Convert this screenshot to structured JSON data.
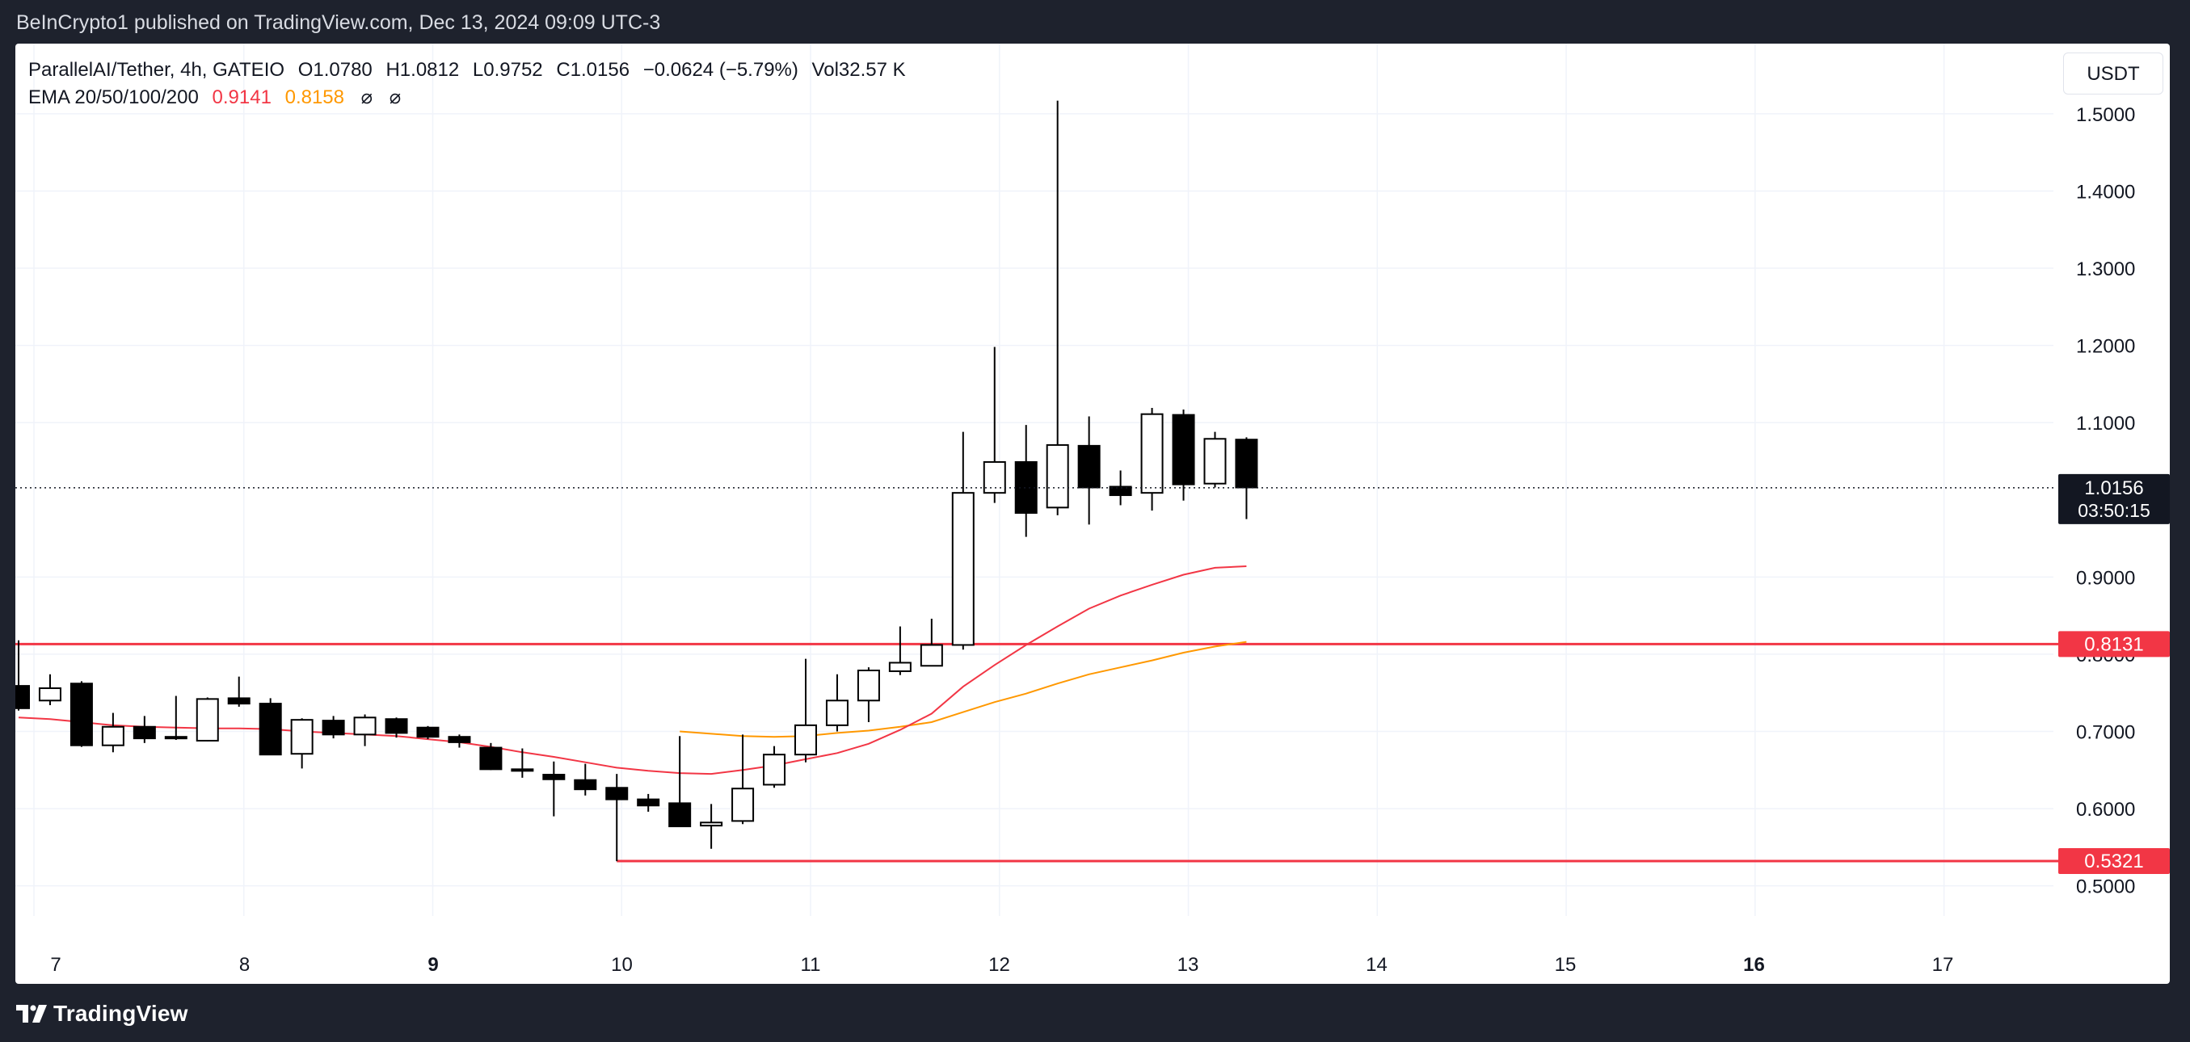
{
  "header": {
    "published_text": "BeInCrypto1 published on TradingView.com, Dec 13, 2024 09:09 UTC-3"
  },
  "legend": {
    "symbol": "ParallelAI/Tether, 4h, GATEIO",
    "open_label": "O",
    "open": "1.0780",
    "high_label": "H",
    "high": "1.0812",
    "low_label": "L",
    "low": "0.9752",
    "close_label": "C",
    "close": "1.0156",
    "change": "−0.0624 (−5.79%)",
    "volume_label": "Vol",
    "volume": "32.57 K",
    "ema_label": "EMA 20/50/100/200",
    "ema20": "0.9141",
    "ema50": "0.8158",
    "ema100": "⌀",
    "ema200": "⌀"
  },
  "toolbar": {
    "currency": "USDT"
  },
  "footer": {
    "brand": "TradingView"
  },
  "colors": {
    "ema20": "#f23645",
    "ema50": "#ff9800",
    "level_line": "#f23645",
    "price_tag": "#131722",
    "candle_up_fill": "#ffffff",
    "candle_down_fill": "#000000",
    "grid": "#f0f3fa",
    "axis_text": "#131722"
  },
  "chart_data": {
    "type": "candlestick",
    "title": "ParallelAI/Tether, 4h, GATEIO",
    "ylim": [
      0.44,
      1.57
    ],
    "y_ticks": [
      "1.5000",
      "1.4000",
      "1.3000",
      "1.2000",
      "1.1000",
      "0.9000",
      "0.8000",
      "0.7000",
      "0.6000",
      "0.5000"
    ],
    "y_tick_values": [
      1.5,
      1.4,
      1.3,
      1.2,
      1.1,
      0.9,
      0.8,
      0.7,
      0.6,
      0.5
    ],
    "x_ticks": [
      "7",
      "8",
      "9",
      "10",
      "11",
      "12",
      "13",
      "14",
      "15",
      "16",
      "17"
    ],
    "x_tick_bold": [
      "9",
      "16"
    ],
    "bar_interval_hours": 4,
    "candles": [
      {
        "o": 0.759,
        "h": 0.818,
        "l": 0.727,
        "c": 0.73
      },
      {
        "o": 0.74,
        "h": 0.774,
        "l": 0.734,
        "c": 0.756
      },
      {
        "o": 0.762,
        "h": 0.765,
        "l": 0.68,
        "c": 0.682
      },
      {
        "o": 0.682,
        "h": 0.724,
        "l": 0.673,
        "c": 0.706
      },
      {
        "o": 0.706,
        "h": 0.72,
        "l": 0.685,
        "c": 0.691
      },
      {
        "o": 0.693,
        "h": 0.746,
        "l": 0.689,
        "c": 0.693
      },
      {
        "o": 0.688,
        "h": 0.744,
        "l": 0.687,
        "c": 0.742
      },
      {
        "o": 0.743,
        "h": 0.771,
        "l": 0.732,
        "c": 0.736
      },
      {
        "o": 0.736,
        "h": 0.743,
        "l": 0.67,
        "c": 0.67
      },
      {
        "o": 0.671,
        "h": 0.717,
        "l": 0.652,
        "c": 0.715
      },
      {
        "o": 0.714,
        "h": 0.72,
        "l": 0.691,
        "c": 0.696
      },
      {
        "o": 0.696,
        "h": 0.722,
        "l": 0.681,
        "c": 0.718
      },
      {
        "o": 0.716,
        "h": 0.718,
        "l": 0.692,
        "c": 0.698
      },
      {
        "o": 0.705,
        "h": 0.707,
        "l": 0.69,
        "c": 0.693
      },
      {
        "o": 0.693,
        "h": 0.696,
        "l": 0.679,
        "c": 0.686
      },
      {
        "o": 0.679,
        "h": 0.685,
        "l": 0.65,
        "c": 0.651
      },
      {
        "o": 0.651,
        "h": 0.678,
        "l": 0.64,
        "c": 0.65
      },
      {
        "o": 0.644,
        "h": 0.661,
        "l": 0.59,
        "c": 0.638
      },
      {
        "o": 0.637,
        "h": 0.658,
        "l": 0.617,
        "c": 0.625
      },
      {
        "o": 0.627,
        "h": 0.645,
        "l": 0.532,
        "c": 0.612
      },
      {
        "o": 0.612,
        "h": 0.619,
        "l": 0.596,
        "c": 0.604
      },
      {
        "o": 0.607,
        "h": 0.694,
        "l": 0.577,
        "c": 0.577
      },
      {
        "o": 0.578,
        "h": 0.606,
        "l": 0.548,
        "c": 0.582
      },
      {
        "o": 0.584,
        "h": 0.696,
        "l": 0.58,
        "c": 0.626
      },
      {
        "o": 0.631,
        "h": 0.681,
        "l": 0.627,
        "c": 0.67
      },
      {
        "o": 0.67,
        "h": 0.794,
        "l": 0.66,
        "c": 0.708
      },
      {
        "o": 0.708,
        "h": 0.774,
        "l": 0.7,
        "c": 0.74
      },
      {
        "o": 0.74,
        "h": 0.783,
        "l": 0.712,
        "c": 0.779
      },
      {
        "o": 0.778,
        "h": 0.836,
        "l": 0.773,
        "c": 0.789
      },
      {
        "o": 0.785,
        "h": 0.846,
        "l": 0.785,
        "c": 0.812
      },
      {
        "o": 0.812,
        "h": 1.088,
        "l": 0.806,
        "c": 1.009
      },
      {
        "o": 1.009,
        "h": 1.198,
        "l": 0.996,
        "c": 1.049
      },
      {
        "o": 1.049,
        "h": 1.097,
        "l": 0.952,
        "c": 0.983
      },
      {
        "o": 0.99,
        "h": 1.517,
        "l": 0.98,
        "c": 1.071
      },
      {
        "o": 1.07,
        "h": 1.108,
        "l": 0.968,
        "c": 1.016
      },
      {
        "o": 1.017,
        "h": 1.038,
        "l": 0.993,
        "c": 1.006
      },
      {
        "o": 1.009,
        "h": 1.119,
        "l": 0.986,
        "c": 1.111
      },
      {
        "o": 1.11,
        "h": 1.117,
        "l": 0.999,
        "c": 1.02
      },
      {
        "o": 1.021,
        "h": 1.088,
        "l": 1.016,
        "c": 1.079
      },
      {
        "o": 1.078,
        "h": 1.081,
        "l": 0.975,
        "c": 1.016
      }
    ],
    "ema20": [
      0.718,
      0.716,
      0.712,
      0.708,
      0.706,
      0.705,
      0.704,
      0.704,
      0.703,
      0.7,
      0.698,
      0.696,
      0.694,
      0.69,
      0.686,
      0.68,
      0.673,
      0.667,
      0.66,
      0.653,
      0.649,
      0.646,
      0.645,
      0.65,
      0.656,
      0.664,
      0.672,
      0.684,
      0.702,
      0.723,
      0.758,
      0.786,
      0.812,
      0.836,
      0.859,
      0.876,
      0.89,
      0.903,
      0.912,
      0.914
    ],
    "ema50": [
      null,
      null,
      null,
      null,
      null,
      null,
      null,
      null,
      null,
      null,
      null,
      null,
      null,
      null,
      null,
      null,
      null,
      null,
      null,
      null,
      null,
      0.7,
      0.697,
      0.694,
      0.693,
      0.694,
      0.698,
      0.701,
      0.706,
      0.712,
      0.725,
      0.738,
      0.749,
      0.762,
      0.774,
      0.783,
      0.792,
      0.802,
      0.81,
      0.816
    ],
    "current_price": {
      "value": 1.0156,
      "label": "1.0156",
      "countdown": "03:50:15"
    },
    "levels": [
      {
        "value": 0.8131,
        "label": "0.8131",
        "start_index": 0
      },
      {
        "value": 0.5321,
        "label": "0.5321",
        "start_index": 19
      }
    ]
  }
}
